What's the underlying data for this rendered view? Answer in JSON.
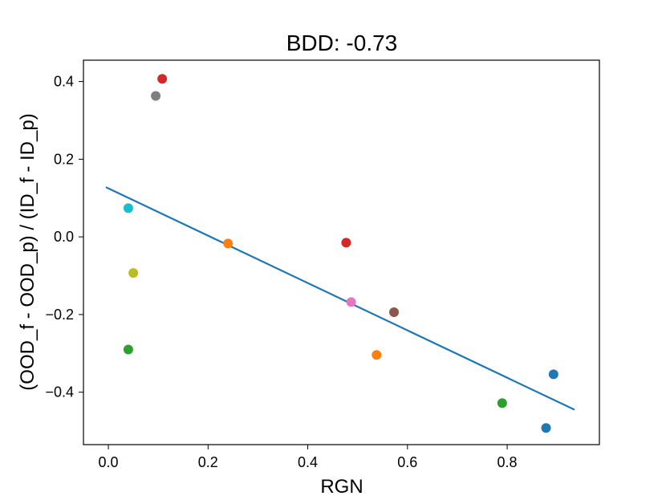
{
  "chart_data": {
    "type": "scatter",
    "title": "BDD:  -0.73",
    "xlabel": "RGN",
    "ylabel": "(OOD_f - OOD_p) / (ID_f - ID_p)",
    "xlim": [
      -0.05,
      0.985
    ],
    "ylim": [
      -0.535,
      0.455
    ],
    "x_ticks": [
      0.0,
      0.2,
      0.4,
      0.6,
      0.8
    ],
    "x_tick_labels": [
      "0.0",
      "0.2",
      "0.4",
      "0.6",
      "0.8"
    ],
    "y_ticks": [
      -0.4,
      -0.2,
      0.0,
      0.2,
      0.4
    ],
    "y_tick_labels": [
      "−0.4",
      "−0.2",
      "0.0",
      "0.2",
      "0.4"
    ],
    "grid": false,
    "points": [
      {
        "x": 0.108,
        "y": 0.407,
        "color": "#d62728"
      },
      {
        "x": 0.095,
        "y": 0.363,
        "color": "#7f7f7f"
      },
      {
        "x": 0.04,
        "y": 0.074,
        "color": "#17becf"
      },
      {
        "x": 0.24,
        "y": -0.017,
        "color": "#ff7f0e"
      },
      {
        "x": 0.05,
        "y": -0.093,
        "color": "#bcbd22"
      },
      {
        "x": 0.04,
        "y": -0.29,
        "color": "#2ca02c"
      },
      {
        "x": 0.477,
        "y": -0.015,
        "color": "#d62728"
      },
      {
        "x": 0.487,
        "y": -0.168,
        "color": "#e377c2"
      },
      {
        "x": 0.573,
        "y": -0.194,
        "color": "#8c564b"
      },
      {
        "x": 0.538,
        "y": -0.304,
        "color": "#ff7f0e"
      },
      {
        "x": 0.79,
        "y": -0.428,
        "color": "#2ca02c"
      },
      {
        "x": 0.893,
        "y": -0.354,
        "color": "#1f77b4"
      },
      {
        "x": 0.878,
        "y": -0.492,
        "color": "#1f77b4"
      }
    ],
    "fit_line": {
      "x": [
        -0.005,
        0.935
      ],
      "y": [
        0.128,
        -0.445
      ],
      "color": "#1f77b4"
    }
  }
}
